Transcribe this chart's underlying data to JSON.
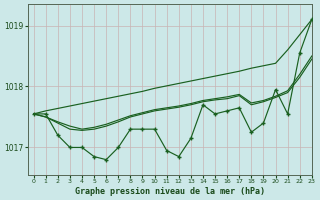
{
  "title": "Graphe pression niveau de la mer (hPa)",
  "bg_color": "#cce8e8",
  "grid_color": "#c8b4b4",
  "line_color": "#1a6020",
  "xlim": [
    -0.5,
    23
  ],
  "ylim": [
    1016.55,
    1019.35
  ],
  "yticks": [
    1017,
    1018,
    1019
  ],
  "xticks": [
    0,
    1,
    2,
    3,
    4,
    5,
    6,
    7,
    8,
    9,
    10,
    11,
    12,
    13,
    14,
    15,
    16,
    17,
    18,
    19,
    20,
    21,
    22,
    23
  ],
  "series": {
    "jagged": [
      1017.55,
      1017.55,
      1017.2,
      1017.0,
      1017.0,
      1016.85,
      1016.8,
      1017.0,
      1017.3,
      1017.3,
      1017.3,
      1016.95,
      1016.85,
      1017.15,
      1017.7,
      1017.55,
      1017.6,
      1017.65,
      1017.25,
      1017.4,
      1017.95,
      1017.55,
      1018.55,
      1019.1
    ],
    "smooth": [
      1017.55,
      1017.5,
      1017.4,
      1017.3,
      1017.28,
      1017.3,
      1017.35,
      1017.42,
      1017.5,
      1017.55,
      1017.6,
      1017.63,
      1017.66,
      1017.7,
      1017.75,
      1017.78,
      1017.8,
      1017.85,
      1017.7,
      1017.75,
      1017.82,
      1017.9,
      1018.15,
      1018.45
    ],
    "smooth2": [
      1017.55,
      1017.5,
      1017.42,
      1017.35,
      1017.3,
      1017.33,
      1017.38,
      1017.45,
      1017.52,
      1017.57,
      1017.62,
      1017.65,
      1017.68,
      1017.72,
      1017.77,
      1017.8,
      1017.83,
      1017.87,
      1017.73,
      1017.77,
      1017.84,
      1017.93,
      1018.2,
      1018.5
    ],
    "linear": [
      1017.55,
      1017.6,
      1017.64,
      1017.68,
      1017.72,
      1017.76,
      1017.8,
      1017.84,
      1017.88,
      1017.92,
      1017.97,
      1018.01,
      1018.05,
      1018.09,
      1018.13,
      1018.17,
      1018.21,
      1018.25,
      1018.3,
      1018.34,
      1018.38,
      1018.6,
      1018.85,
      1019.1
    ]
  }
}
